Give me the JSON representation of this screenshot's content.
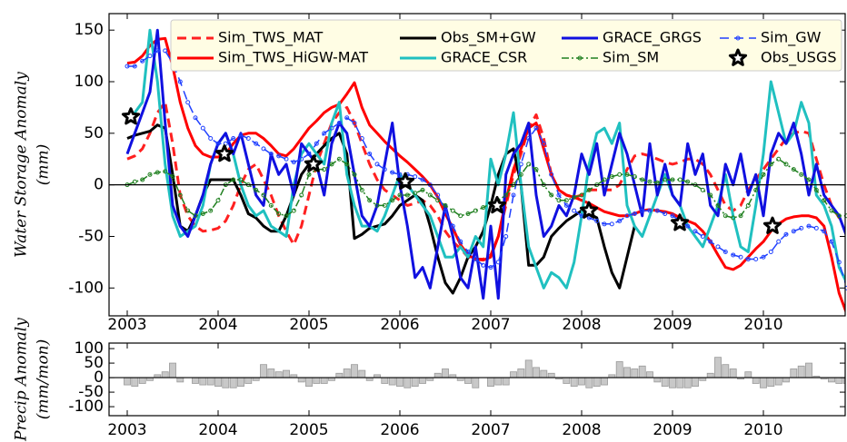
{
  "chart_data": [
    {
      "type": "line",
      "ylabel": [
        "Water Storage Anomaly",
        "(mm)"
      ],
      "xlim": [
        2002.8,
        2010.9
      ],
      "ylim": [
        -127,
        166
      ],
      "xticks": [
        2003,
        2004,
        2005,
        2006,
        2007,
        2008,
        2009,
        2010
      ],
      "yticks": [
        -100,
        -50,
        0,
        50,
        100,
        150
      ],
      "legend": "upper center",
      "x": [
        2003,
        2003.083,
        2003.167,
        2003.25,
        2003.333,
        2003.417,
        2003.5,
        2003.583,
        2003.667,
        2003.75,
        2003.833,
        2003.917,
        2004,
        2004.083,
        2004.167,
        2004.25,
        2004.333,
        2004.417,
        2004.5,
        2004.583,
        2004.667,
        2004.75,
        2004.833,
        2004.917,
        2005,
        2005.083,
        2005.167,
        2005.25,
        2005.333,
        2005.417,
        2005.5,
        2005.583,
        2005.667,
        2005.75,
        2005.833,
        2005.917,
        2006,
        2006.083,
        2006.167,
        2006.25,
        2006.333,
        2006.417,
        2006.5,
        2006.583,
        2006.667,
        2006.75,
        2006.833,
        2006.917,
        2007,
        2007.083,
        2007.167,
        2007.25,
        2007.333,
        2007.417,
        2007.5,
        2007.583,
        2007.667,
        2007.75,
        2007.833,
        2007.917,
        2008,
        2008.083,
        2008.167,
        2008.25,
        2008.333,
        2008.417,
        2008.5,
        2008.583,
        2008.667,
        2008.75,
        2008.833,
        2008.917,
        2009,
        2009.083,
        2009.167,
        2009.25,
        2009.333,
        2009.417,
        2009.5,
        2009.583,
        2009.667,
        2009.75,
        2009.833,
        2009.917,
        2010,
        2010.083,
        2010.167,
        2010.25,
        2010.333,
        2010.417,
        2010.5,
        2010.583,
        2010.667,
        2010.75,
        2010.833,
        2010.917
      ],
      "series": [
        {
          "name": "Sim_TWS_MAT",
          "color": "#ff2020",
          "style": "dashed",
          "marker": "none",
          "values": [
            25,
            28,
            35,
            50,
            70,
            80,
            40,
            -10,
            -30,
            -40,
            -45,
            -44,
            -42,
            -35,
            -20,
            0,
            15,
            20,
            5,
            -10,
            -30,
            -45,
            -58,
            -40,
            -10,
            20,
            40,
            60,
            70,
            75,
            60,
            40,
            20,
            5,
            -5,
            -10,
            -15,
            -20,
            -18,
            -15,
            -20,
            -30,
            -45,
            -55,
            -62,
            -70,
            -72,
            -72,
            -68,
            -50,
            -20,
            10,
            30,
            55,
            68,
            45,
            10,
            -5,
            -10,
            -12,
            -10,
            -5,
            -5,
            -5,
            -5,
            0,
            15,
            28,
            30,
            28,
            25,
            22,
            20,
            22,
            25,
            25,
            20,
            10,
            -5,
            -20,
            -25,
            -20,
            -5,
            5,
            15,
            25,
            35,
            45,
            50,
            52,
            50,
            25,
            0,
            -20,
            -32,
            -33
          ]
        },
        {
          "name": "Sim_TWS_HiGW-MAT",
          "color": "#ff0000",
          "style": "solid",
          "marker": "none",
          "values": [
            118,
            119,
            125,
            135,
            141,
            142,
            115,
            80,
            55,
            38,
            30,
            27,
            27,
            30,
            40,
            48,
            50,
            50,
            45,
            38,
            30,
            28,
            35,
            45,
            55,
            62,
            70,
            75,
            78,
            88,
            99,
            75,
            58,
            50,
            42,
            35,
            28,
            22,
            15,
            8,
            0,
            -12,
            -28,
            -42,
            -58,
            -68,
            -72,
            -73,
            -70,
            -50,
            -15,
            15,
            35,
            55,
            60,
            35,
            10,
            -5,
            -10,
            -12,
            -15,
            -18,
            -22,
            -26,
            -28,
            -30,
            -30,
            -28,
            -25,
            -24,
            -25,
            -26,
            -28,
            -32,
            -35,
            -38,
            -45,
            -55,
            -68,
            -80,
            -82,
            -78,
            -70,
            -62,
            -55,
            -45,
            -38,
            -33,
            -31,
            -30,
            -30,
            -32,
            -40,
            -70,
            -105,
            -125
          ]
        },
        {
          "name": "Obs_SM+GW",
          "color": "#000000",
          "style": "solid",
          "marker": "none",
          "values": [
            45,
            48,
            50,
            52,
            58,
            55,
            10,
            -40,
            -45,
            -30,
            -10,
            5,
            5,
            5,
            5,
            -10,
            -28,
            -32,
            -40,
            -45,
            -45,
            -30,
            -10,
            10,
            20,
            30,
            38,
            45,
            50,
            30,
            -52,
            -48,
            -42,
            -40,
            -38,
            -30,
            -20,
            -15,
            -10,
            -15,
            -40,
            -70,
            -95,
            -105,
            -90,
            -70,
            -60,
            -45,
            -20,
            10,
            30,
            35,
            0,
            -78,
            -78,
            -70,
            -50,
            -42,
            -35,
            -30,
            -25,
            -28,
            -32,
            -60,
            -85,
            -100,
            -70,
            -40,
            null,
            null,
            null,
            null,
            null,
            null,
            null,
            null,
            null,
            null,
            null,
            null,
            null,
            null,
            null,
            null,
            null,
            null,
            null,
            null,
            null,
            null,
            null,
            null,
            null,
            null,
            null,
            null
          ]
        },
        {
          "name": "GRACE_CSR",
          "color": "#20c0c0",
          "style": "solid",
          "marker": "none",
          "values": [
            60,
            70,
            80,
            150,
            100,
            20,
            -30,
            -50,
            -45,
            -40,
            -20,
            20,
            40,
            50,
            30,
            0,
            -20,
            -30,
            -25,
            -40,
            -45,
            -50,
            0,
            30,
            40,
            30,
            20,
            60,
            80,
            10,
            -20,
            -40,
            -40,
            -45,
            -30,
            -10,
            10,
            0,
            -10,
            -20,
            -30,
            -50,
            -70,
            -70,
            -60,
            -70,
            -50,
            -60,
            25,
            0,
            30,
            70,
            0,
            -60,
            -80,
            -100,
            -85,
            -90,
            -100,
            -75,
            -30,
            20,
            50,
            55,
            40,
            60,
            -20,
            -40,
            -50,
            -30,
            -10,
            10,
            -10,
            -20,
            -40,
            -50,
            -60,
            -40,
            -20,
            10,
            -30,
            -60,
            -65,
            -20,
            30,
            100,
            70,
            40,
            50,
            80,
            60,
            -10,
            -20,
            -40,
            -80,
            -95
          ]
        },
        {
          "name": "GRACE_GRGS",
          "color": "#1010e0",
          "style": "solid",
          "marker": "none",
          "values": [
            30,
            50,
            70,
            90,
            150,
            60,
            -20,
            -40,
            -50,
            -30,
            -10,
            20,
            40,
            50,
            30,
            50,
            20,
            -10,
            -20,
            30,
            10,
            20,
            -10,
            40,
            30,
            20,
            -10,
            40,
            60,
            50,
            10,
            -30,
            -40,
            -20,
            20,
            60,
            0,
            -40,
            -90,
            -80,
            -100,
            -60,
            -20,
            -50,
            -90,
            -100,
            -60,
            -110,
            -40,
            -110,
            10,
            30,
            40,
            60,
            -10,
            -50,
            -40,
            -20,
            -30,
            -10,
            30,
            10,
            40,
            -10,
            20,
            50,
            30,
            0,
            -30,
            40,
            -10,
            20,
            -10,
            -20,
            40,
            10,
            30,
            -20,
            -30,
            20,
            0,
            30,
            -10,
            10,
            -30,
            30,
            50,
            40,
            60,
            30,
            -10,
            20,
            -10,
            -20,
            -30,
            -50
          ]
        },
        {
          "name": "Sim_SM",
          "color": "#208020",
          "style": "dashdot",
          "marker": "circle",
          "values": [
            0,
            3,
            5,
            10,
            12,
            13,
            8,
            -10,
            -25,
            -30,
            -28,
            -25,
            -15,
            0,
            5,
            5,
            0,
            -5,
            -10,
            -20,
            -28,
            -30,
            -25,
            -10,
            10,
            15,
            15,
            20,
            25,
            20,
            10,
            -5,
            -15,
            -20,
            -20,
            -15,
            -10,
            -10,
            -8,
            -5,
            -10,
            -15,
            -20,
            -25,
            -30,
            -28,
            -25,
            -22,
            -18,
            -15,
            -10,
            0,
            10,
            20,
            15,
            0,
            -10,
            -15,
            -15,
            -12,
            -10,
            -5,
            0,
            5,
            8,
            10,
            10,
            8,
            5,
            3,
            2,
            5,
            5,
            5,
            3,
            0,
            -5,
            -10,
            -20,
            -30,
            -32,
            -30,
            -20,
            -5,
            10,
            20,
            25,
            20,
            15,
            10,
            5,
            -5,
            -15,
            -25,
            -30,
            -30
          ]
        },
        {
          "name": "Sim_GW",
          "color": "#2040ff",
          "style": "dashed",
          "marker": "circle",
          "values": [
            115,
            115,
            120,
            125,
            130,
            130,
            118,
            100,
            80,
            65,
            55,
            45,
            40,
            40,
            45,
            48,
            45,
            40,
            35,
            30,
            28,
            25,
            22,
            25,
            30,
            40,
            50,
            55,
            60,
            65,
            60,
            45,
            30,
            20,
            15,
            12,
            10,
            10,
            8,
            5,
            0,
            -10,
            -25,
            -40,
            -55,
            -65,
            -72,
            -78,
            -80,
            -75,
            -50,
            -10,
            20,
            45,
            55,
            40,
            10,
            -10,
            -20,
            -25,
            -30,
            -32,
            -35,
            -38,
            -38,
            -35,
            -30,
            -28,
            -25,
            -25,
            -25,
            -28,
            -30,
            -35,
            -40,
            -45,
            -50,
            -55,
            -60,
            -65,
            -68,
            -70,
            -72,
            -72,
            -70,
            -65,
            -55,
            -48,
            -45,
            -42,
            -40,
            -42,
            -45,
            -55,
            -75,
            -100
          ]
        },
        {
          "name": "Obs_USGS",
          "color": "#000000",
          "style": "none",
          "marker": "star",
          "x": [
            2003.04,
            2004.07,
            2005.05,
            2006.06,
            2007.07,
            2008.08,
            2009.08,
            2010.1
          ],
          "values": [
            66,
            30,
            20,
            3,
            -20,
            -25,
            -37,
            -40
          ]
        }
      ]
    },
    {
      "type": "bar",
      "ylabel": [
        "Precip Anomaly",
        "(mm/mon)"
      ],
      "xlim": [
        2002.8,
        2010.9
      ],
      "ylim": [
        -131,
        119
      ],
      "xticks": [
        2003,
        2004,
        2005,
        2006,
        2007,
        2008,
        2009,
        2010
      ],
      "yticks": [
        -100,
        -50,
        0,
        50,
        100
      ],
      "color": "#c8c8c8",
      "x": [
        2003,
        2003.083,
        2003.167,
        2003.25,
        2003.333,
        2003.417,
        2003.5,
        2003.583,
        2003.667,
        2003.75,
        2003.833,
        2003.917,
        2004,
        2004.083,
        2004.167,
        2004.25,
        2004.333,
        2004.417,
        2004.5,
        2004.583,
        2004.667,
        2004.75,
        2004.833,
        2004.917,
        2005,
        2005.083,
        2005.167,
        2005.25,
        2005.333,
        2005.417,
        2005.5,
        2005.583,
        2005.667,
        2005.75,
        2005.833,
        2005.917,
        2006,
        2006.083,
        2006.167,
        2006.25,
        2006.333,
        2006.417,
        2006.5,
        2006.583,
        2006.667,
        2006.75,
        2006.833,
        2006.917,
        2007,
        2007.083,
        2007.167,
        2007.25,
        2007.333,
        2007.417,
        2007.5,
        2007.583,
        2007.667,
        2007.75,
        2007.833,
        2007.917,
        2008,
        2008.083,
        2008.167,
        2008.25,
        2008.333,
        2008.417,
        2008.5,
        2008.583,
        2008.667,
        2008.75,
        2008.833,
        2008.917,
        2009,
        2009.083,
        2009.167,
        2009.25,
        2009.333,
        2009.417,
        2009.5,
        2009.583,
        2009.667,
        2009.75,
        2009.833,
        2009.917,
        2010,
        2010.083,
        2010.167,
        2010.25,
        2010.333,
        2010.417,
        2010.5,
        2010.583,
        2010.667,
        2010.75,
        2010.833,
        2010.917
      ],
      "values": [
        -25,
        -30,
        -20,
        -10,
        10,
        20,
        50,
        -15,
        0,
        -20,
        -25,
        -25,
        -30,
        -35,
        -35,
        -30,
        -20,
        -10,
        45,
        30,
        20,
        25,
        10,
        -15,
        -30,
        -20,
        -20,
        -10,
        15,
        30,
        45,
        25,
        -10,
        10,
        -20,
        -25,
        -30,
        -35,
        -30,
        -20,
        -10,
        15,
        30,
        10,
        -10,
        -20,
        -35,
        0,
        -30,
        -25,
        -25,
        20,
        30,
        60,
        35,
        25,
        15,
        -5,
        -20,
        -30,
        -25,
        -35,
        -30,
        -25,
        10,
        55,
        35,
        30,
        40,
        20,
        -15,
        -30,
        -35,
        -35,
        -35,
        -30,
        -10,
        15,
        70,
        45,
        30,
        -5,
        20,
        -20,
        -35,
        -30,
        -25,
        -15,
        30,
        40,
        50,
        5,
        -5,
        -15,
        -20,
        -20
      ]
    }
  ]
}
